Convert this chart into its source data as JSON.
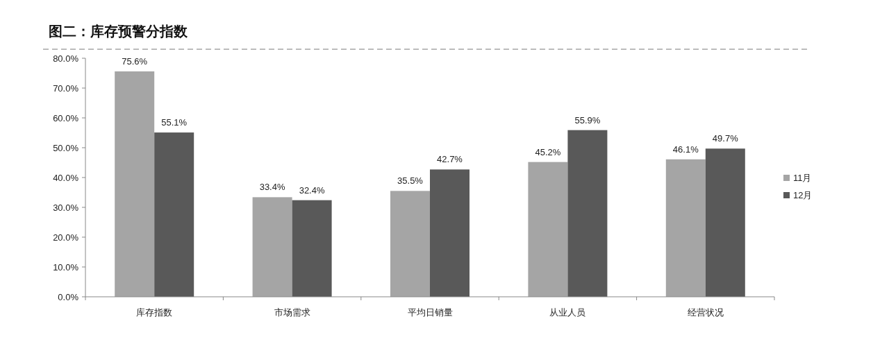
{
  "chart_data": {
    "type": "bar",
    "title": "图二：库存预警分指数",
    "categories": [
      "库存指数",
      "市场需求",
      "平均日销量",
      "从业人员",
      "经营状况"
    ],
    "series": [
      {
        "name": "11月",
        "color": "#a5a5a5",
        "values": [
          75.6,
          33.4,
          35.5,
          45.2,
          46.1
        ],
        "value_labels": [
          "75.6%",
          "33.4%",
          "35.5%",
          "45.2%",
          "46.1%"
        ]
      },
      {
        "name": "12月",
        "color": "#595959",
        "values": [
          55.1,
          32.4,
          42.7,
          55.9,
          49.7
        ],
        "value_labels": [
          "55.1%",
          "32.4%",
          "42.7%",
          "55.9%",
          "49.7%"
        ]
      }
    ],
    "ylim": [
      0,
      80
    ],
    "yticks": [
      {
        "value": 0,
        "label": "0.0%"
      },
      {
        "value": 10,
        "label": "10.0%"
      },
      {
        "value": 20,
        "label": "20.0%"
      },
      {
        "value": 30,
        "label": "30.0%"
      },
      {
        "value": 40,
        "label": "40.0%"
      },
      {
        "value": 50,
        "label": "50.0%"
      },
      {
        "value": 60,
        "label": "60.0%"
      },
      {
        "value": 70,
        "label": "70.0%"
      },
      {
        "value": 80,
        "label": "80.0%"
      }
    ],
    "legend": "right",
    "grid": false
  }
}
